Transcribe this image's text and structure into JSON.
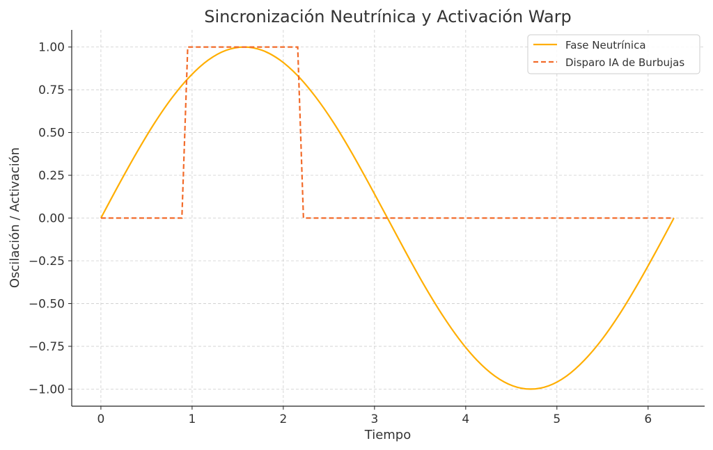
{
  "chart_data": {
    "type": "line",
    "title": "Sincronización Neutrínica y Activación Warp",
    "xlabel": "Tiempo",
    "ylabel": "Oscilación / Activación",
    "xlim": [
      -0.32,
      6.62
    ],
    "ylim": [
      -1.1,
      1.1
    ],
    "xticks": [
      0,
      1,
      2,
      3,
      4,
      5,
      6
    ],
    "xtick_labels": [
      "0",
      "1",
      "2",
      "3",
      "4",
      "5",
      "6"
    ],
    "yticks": [
      1.0,
      0.75,
      0.5,
      0.25,
      0.0,
      -0.25,
      -0.5,
      -0.75,
      -1.0
    ],
    "ytick_labels": [
      "1.00",
      "0.75",
      "0.50",
      "0.25",
      "0.00",
      "−0.25",
      "−0.50",
      "−0.75",
      "−1.00"
    ],
    "grid": true,
    "legend_position": "top-right",
    "series": [
      {
        "name": "Fase Neutrínica",
        "style": "solid",
        "color": "#FFAE00",
        "x": [
          0,
          0.196,
          0.393,
          0.589,
          0.785,
          0.982,
          1.178,
          1.374,
          1.571,
          1.767,
          1.963,
          2.16,
          2.356,
          2.553,
          2.749,
          2.945,
          3.142,
          3.338,
          3.534,
          3.731,
          3.927,
          4.123,
          4.32,
          4.516,
          4.712,
          4.909,
          5.105,
          5.301,
          5.498,
          5.694,
          5.89,
          6.087,
          6.283
        ],
        "y": [
          0,
          0.195,
          0.383,
          0.556,
          0.707,
          0.831,
          0.924,
          0.981,
          1,
          0.981,
          0.924,
          0.831,
          0.707,
          0.556,
          0.383,
          0.195,
          0,
          -0.195,
          -0.383,
          -0.556,
          -0.707,
          -0.831,
          -0.924,
          -0.981,
          -1,
          -0.981,
          -0.924,
          -0.831,
          -0.707,
          -0.556,
          -0.383,
          -0.195,
          0
        ]
      },
      {
        "name": "Disparo IA de Burbujas",
        "style": "dashed",
        "color": "#F26B2A",
        "x": [
          0,
          0.888,
          0.952,
          2.158,
          2.221,
          6.283
        ],
        "y": [
          0,
          0,
          1,
          1,
          0,
          0
        ]
      }
    ]
  }
}
